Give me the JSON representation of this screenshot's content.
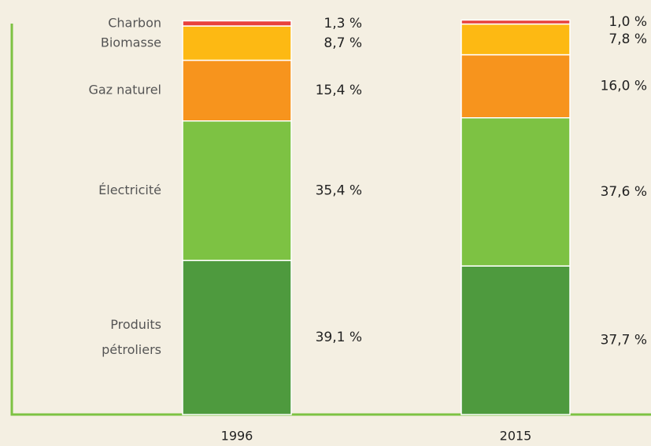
{
  "chart_data": {
    "type": "stacked-bar",
    "categories": [
      "1996",
      "2015"
    ],
    "ylim": [
      0,
      100
    ],
    "series": [
      {
        "name": "Produits pétroliers",
        "color": "#4e9a3e",
        "values": [
          39.1,
          37.7
        ],
        "value_labels": [
          "39,1 %",
          "37,7 %"
        ]
      },
      {
        "name": "Électricité",
        "color": "#7dc243",
        "values": [
          35.4,
          37.6
        ],
        "value_labels": [
          "35,4 %",
          "37,6 %"
        ]
      },
      {
        "name": "Gaz naturel",
        "color": "#f7941d",
        "values": [
          15.4,
          16.0
        ],
        "value_labels": [
          "15,4 %",
          "16,0 %"
        ]
      },
      {
        "name": "Biomasse",
        "color": "#fdb913",
        "values": [
          8.7,
          7.8
        ],
        "value_labels": [
          "8,7 %",
          "7,8 %"
        ]
      },
      {
        "name": "Charbon",
        "color": "#e8413c",
        "values": [
          1.3,
          1.0
        ],
        "value_labels": [
          "1,3 %",
          "1,0 %"
        ]
      }
    ]
  }
}
